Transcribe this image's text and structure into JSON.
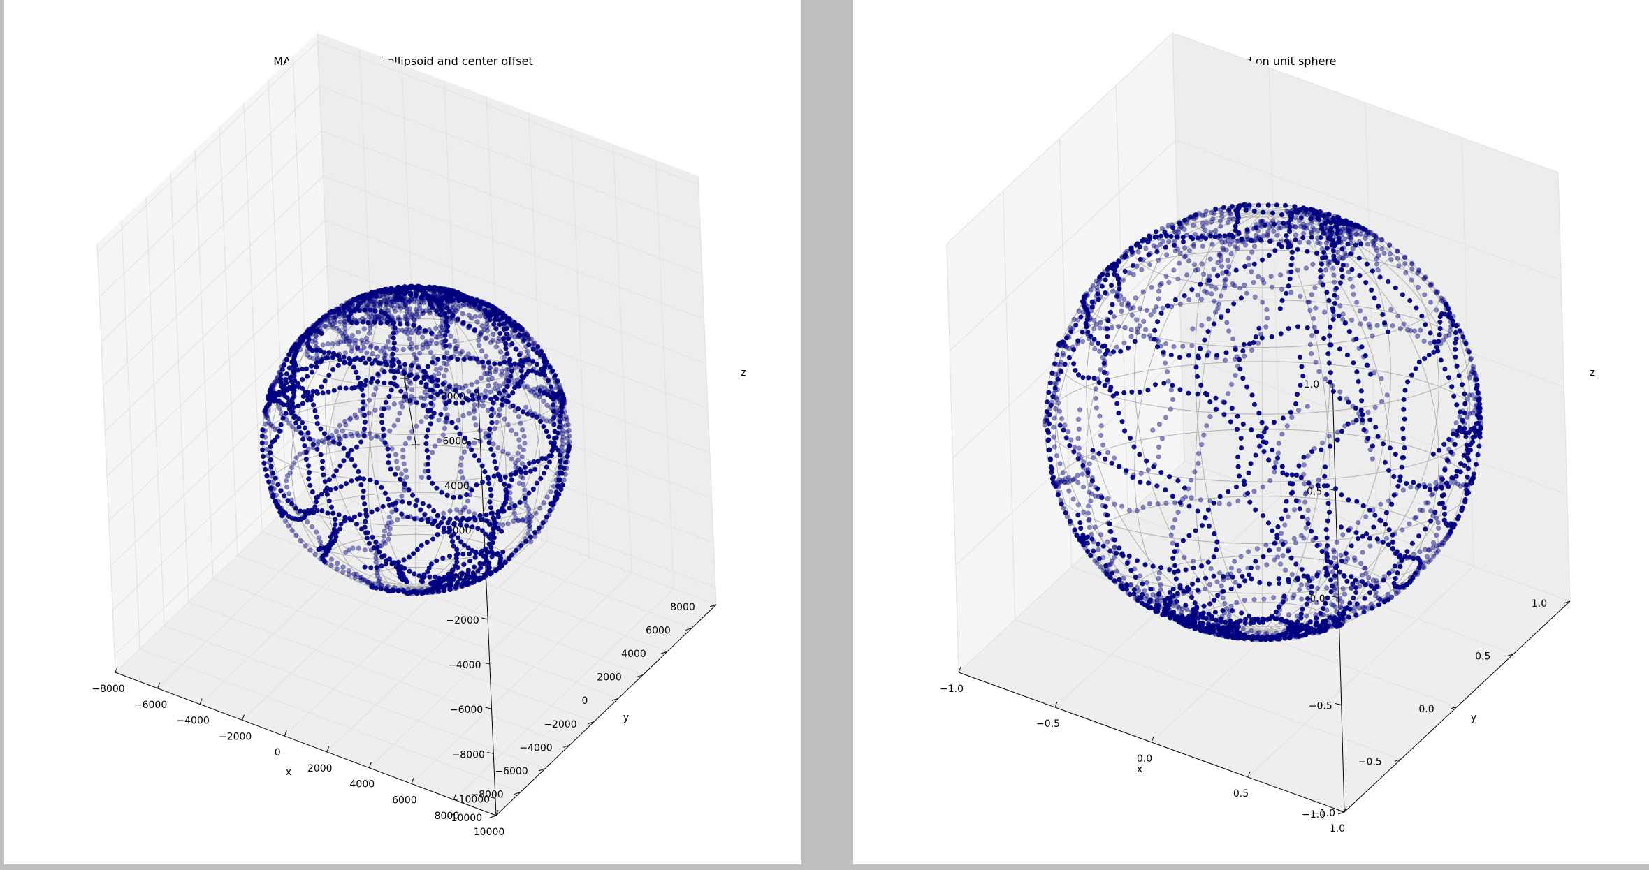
{
  "chart_data": [
    {
      "type": "scatter",
      "projection": "3d",
      "title": "MAG raw with fitted ellipsoid and center offset",
      "xlabel": "x",
      "ylabel": "y",
      "zlabel": "z",
      "xlim": [
        -8000,
        10000
      ],
      "ylim": [
        -10000,
        8000
      ],
      "zlim": [
        -10000,
        8000
      ],
      "x_ticks": [
        "−8000",
        "−6000",
        "−4000",
        "−2000",
        "0",
        "2000",
        "4000",
        "6000",
        "8000",
        "10000"
      ],
      "y_ticks": [
        "−10000",
        "−8000",
        "−6000",
        "−4000",
        "−2000",
        "0",
        "2000",
        "4000",
        "6000",
        "8000"
      ],
      "z_ticks": [
        "−10000",
        "−8000",
        "−6000",
        "−4000",
        "−2000",
        "0",
        "2000",
        "4000",
        "6000",
        "8000"
      ],
      "point_color": "#00007f",
      "wireframe_color": "#9a9a9a",
      "sphere_center": [
        0,
        0,
        -1600
      ],
      "sphere_radius": 6600,
      "center_offset_line": {
        "from": [
          -300,
          0,
          0
        ],
        "to": [
          0,
          0,
          -3500
        ]
      }
    },
    {
      "type": "scatter",
      "projection": "3d",
      "title": "MAG calibrated on unit sphere",
      "xlabel": "x",
      "ylabel": "y",
      "zlabel": "z",
      "xlim": [
        -1.0,
        1.0
      ],
      "ylim": [
        -1.0,
        1.0
      ],
      "zlim": [
        -1.0,
        1.0
      ],
      "x_ticks": [
        "−1.0",
        "−0.5",
        "0.0",
        "0.5",
        "1.0"
      ],
      "y_ticks": [
        "−1.0",
        "−0.5",
        "0.0",
        "0.5",
        "1.0"
      ],
      "z_ticks": [
        "−1.0",
        "−0.5",
        "0.0",
        "0.5",
        "1.0"
      ],
      "point_color": "#00007f",
      "wireframe_color": "#9a9a9a",
      "sphere_center": [
        0,
        0,
        0
      ],
      "sphere_radius": 1.0
    }
  ]
}
